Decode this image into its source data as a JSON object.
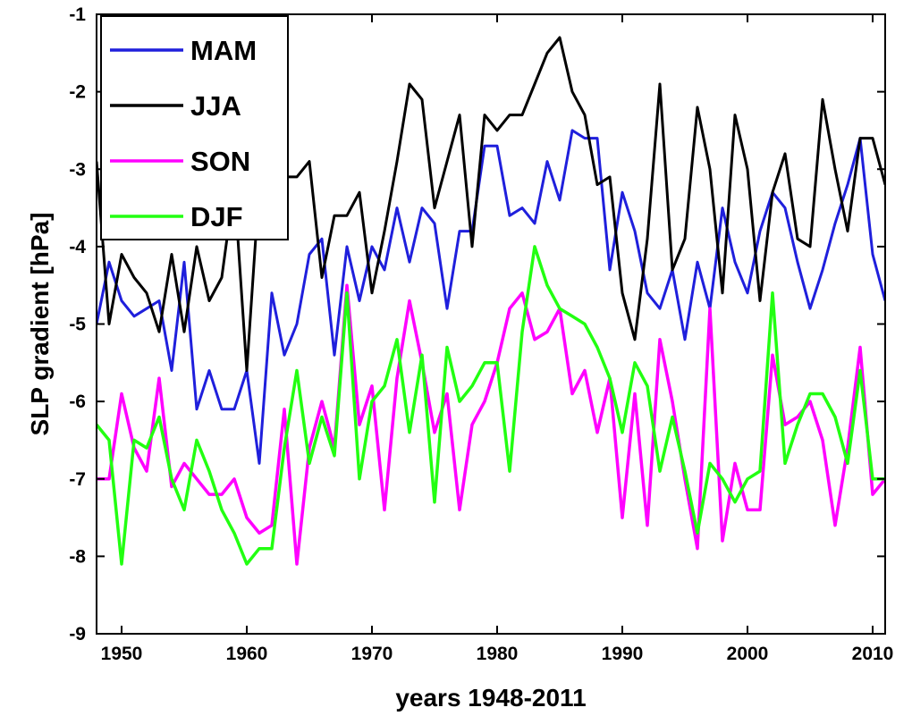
{
  "chart_data": {
    "type": "line",
    "xlabel": "years 1948-2011",
    "ylabel": "SLP gradient [hPa]",
    "xlim": [
      1948,
      2011
    ],
    "ylim": [
      -9,
      -1
    ],
    "xticks": [
      1950,
      1960,
      1970,
      1980,
      1990,
      2000,
      2010
    ],
    "yticks": [
      -9,
      -8,
      -7,
      -6,
      -5,
      -4,
      -3,
      -2,
      -1
    ],
    "legend_position": "top-left",
    "x": [
      1948,
      1949,
      1950,
      1951,
      1952,
      1953,
      1954,
      1955,
      1956,
      1957,
      1958,
      1959,
      1960,
      1961,
      1962,
      1963,
      1964,
      1965,
      1966,
      1967,
      1968,
      1969,
      1970,
      1971,
      1972,
      1973,
      1974,
      1975,
      1976,
      1977,
      1978,
      1979,
      1980,
      1981,
      1982,
      1983,
      1984,
      1985,
      1986,
      1987,
      1988,
      1989,
      1990,
      1991,
      1992,
      1993,
      1994,
      1995,
      1996,
      1997,
      1998,
      1999,
      2000,
      2001,
      2002,
      2003,
      2004,
      2005,
      2006,
      2007,
      2008,
      2009,
      2010,
      2011
    ],
    "series": [
      {
        "name": "MAM",
        "color": "#1f1fdc",
        "values": [
          -5.0,
          -4.2,
          -4.7,
          -4.9,
          -4.8,
          -4.7,
          -5.6,
          -4.2,
          -6.1,
          -5.6,
          -6.1,
          -6.1,
          -5.6,
          -6.8,
          -4.6,
          -5.4,
          -5.0,
          -4.1,
          -3.9,
          -5.4,
          -4.0,
          -4.7,
          -4.0,
          -4.3,
          -3.5,
          -4.2,
          -3.5,
          -3.7,
          -4.8,
          -3.8,
          -3.8,
          -2.7,
          -2.7,
          -3.6,
          -3.5,
          -3.7,
          -2.9,
          -3.4,
          -2.5,
          -2.6,
          -2.6,
          -4.3,
          -3.3,
          -3.8,
          -4.6,
          -4.8,
          -4.3,
          -5.2,
          -4.2,
          -4.8,
          -3.5,
          -4.2,
          -4.6,
          -3.8,
          -3.3,
          -3.5,
          -4.2,
          -4.8,
          -4.3,
          -3.7,
          -3.2,
          -2.6,
          -4.1,
          -4.7
        ]
      },
      {
        "name": "JJA",
        "color": "#000000",
        "values": [
          -2.9,
          -5.0,
          -4.1,
          -4.4,
          -4.6,
          -5.1,
          -4.1,
          -5.1,
          -4.0,
          -4.7,
          -4.4,
          -3.2,
          -5.6,
          -3.2,
          -3.0,
          -3.1,
          -3.1,
          -2.9,
          -4.4,
          -3.6,
          -3.6,
          -3.3,
          -4.6,
          -3.8,
          -2.9,
          -1.9,
          -2.1,
          -3.5,
          -2.9,
          -2.3,
          -4.0,
          -2.3,
          -2.5,
          -2.3,
          -2.3,
          -1.9,
          -1.5,
          -1.3,
          -2.0,
          -2.3,
          -3.2,
          -3.1,
          -4.6,
          -5.2,
          -3.9,
          -1.9,
          -4.3,
          -3.9,
          -2.2,
          -3.0,
          -4.6,
          -2.3,
          -3.0,
          -4.7,
          -3.3,
          -2.8,
          -3.9,
          -4.0,
          -2.1,
          -3.0,
          -3.8,
          -2.6,
          -2.6,
          -3.2
        ]
      },
      {
        "name": "SON",
        "color": "#ff00ff",
        "values": [
          -7.0,
          -7.0,
          -5.9,
          -6.6,
          -6.9,
          -5.7,
          -7.1,
          -6.8,
          -7.0,
          -7.2,
          -7.2,
          -7.0,
          -7.5,
          -7.7,
          -7.6,
          -6.1,
          -8.1,
          -6.6,
          -6.0,
          -6.6,
          -4.5,
          -6.3,
          -5.8,
          -7.4,
          -5.7,
          -4.7,
          -5.5,
          -6.4,
          -5.9,
          -7.4,
          -6.3,
          -6.0,
          -5.5,
          -4.8,
          -4.6,
          -5.2,
          -5.1,
          -4.8,
          -5.9,
          -5.6,
          -6.4,
          -5.7,
          -7.5,
          -5.9,
          -7.6,
          -5.2,
          -6.0,
          -7.0,
          -7.9,
          -4.8,
          -7.8,
          -6.8,
          -7.4,
          -7.4,
          -5.4,
          -6.3,
          -6.2,
          -6.0,
          -6.5,
          -7.6,
          -6.6,
          -5.3,
          -7.2,
          -7.0
        ]
      },
      {
        "name": "DJF",
        "color": "#22ff11",
        "values": [
          -6.3,
          -6.5,
          -8.1,
          -6.5,
          -6.6,
          -6.2,
          -7.0,
          -7.4,
          -6.5,
          -6.9,
          -7.4,
          -7.7,
          -8.1,
          -7.9,
          -7.9,
          -6.6,
          -5.6,
          -6.8,
          -6.2,
          -6.7,
          -4.6,
          -7.0,
          -6.0,
          -5.8,
          -5.2,
          -6.4,
          -5.4,
          -7.3,
          -5.3,
          -6.0,
          -5.8,
          -5.5,
          -5.5,
          -6.9,
          -5.1,
          -4.0,
          -4.5,
          -4.8,
          -4.9,
          -5.0,
          -5.3,
          -5.7,
          -6.4,
          -5.5,
          -5.8,
          -6.9,
          -6.2,
          -6.9,
          -7.7,
          -6.8,
          -7.0,
          -7.3,
          -7.0,
          -6.9,
          -4.6,
          -6.8,
          -6.3,
          -5.9,
          -5.9,
          -6.2,
          -6.8,
          -5.6,
          -7.0,
          -7.0
        ]
      }
    ]
  }
}
